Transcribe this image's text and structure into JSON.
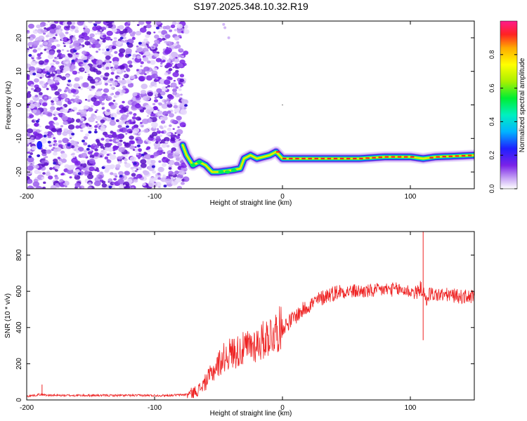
{
  "title": "S197.2025.348.10.32.R19",
  "colors": {
    "snr_line": "#ee2222",
    "axis": "#000000",
    "noise_purple": "#7a22e8"
  },
  "chart_data": [
    {
      "type": "heatmap",
      "name": "spectrogram",
      "xlabel": "Height of straight line (km)",
      "ylabel": "Frequency (Hz)",
      "xlim": [
        -200,
        150
      ],
      "ylim": [
        -25,
        25
      ],
      "xticks": [
        -200,
        -100,
        0,
        100
      ],
      "yticks": [
        -20,
        -10,
        0,
        10,
        20
      ],
      "noise_region_x": [
        -200,
        -75
      ],
      "trace": [
        {
          "x": -78,
          "y": -12
        },
        {
          "x": -75,
          "y": -15
        },
        {
          "x": -70,
          "y": -18
        },
        {
          "x": -65,
          "y": -17
        },
        {
          "x": -60,
          "y": -18
        },
        {
          "x": -55,
          "y": -20
        },
        {
          "x": -50,
          "y": -20
        },
        {
          "x": -40,
          "y": -19.5
        },
        {
          "x": -33,
          "y": -19
        },
        {
          "x": -30,
          "y": -16
        },
        {
          "x": -25,
          "y": -15
        },
        {
          "x": -20,
          "y": -16
        },
        {
          "x": -10,
          "y": -15
        },
        {
          "x": -5,
          "y": -14
        },
        {
          "x": 0,
          "y": -16
        },
        {
          "x": 20,
          "y": -16
        },
        {
          "x": 40,
          "y": -16
        },
        {
          "x": 60,
          "y": -16
        },
        {
          "x": 80,
          "y": -15.5
        },
        {
          "x": 100,
          "y": -15.5
        },
        {
          "x": 110,
          "y": -16
        },
        {
          "x": 120,
          "y": -15.5
        },
        {
          "x": 150,
          "y": -15
        }
      ],
      "colorbar": {
        "label": "Normalized spectral amplitude",
        "range": [
          0,
          1
        ],
        "ticks": [
          "0.0",
          "0.2",
          "0.4",
          "0.6",
          "0.8"
        ],
        "tick_values": [
          0.0,
          0.2,
          0.4,
          0.6,
          0.8
        ]
      }
    },
    {
      "type": "line",
      "name": "snr",
      "xlabel": "Height of straight line (km)",
      "ylabel": "SNR (10 * v/v)",
      "xlim": [
        -200,
        150
      ],
      "ylim": [
        0,
        930
      ],
      "xticks": [
        -200,
        -100,
        0,
        100
      ],
      "yticks": [
        0,
        200,
        400,
        600,
        800
      ],
      "series": [
        {
          "name": "SNR",
          "x": [
            -200,
            -190,
            -180,
            -160,
            -140,
            -120,
            -100,
            -90,
            -80,
            -75,
            -70,
            -65,
            -60,
            -55,
            -50,
            -45,
            -40,
            -35,
            -30,
            -25,
            -20,
            -15,
            -10,
            -5,
            0,
            5,
            10,
            15,
            20,
            25,
            30,
            35,
            40,
            45,
            50,
            60,
            70,
            80,
            90,
            100,
            105,
            108,
            110,
            112,
            115,
            120,
            130,
            140,
            150
          ],
          "y": [
            20,
            30,
            25,
            25,
            25,
            25,
            25,
            25,
            28,
            30,
            40,
            60,
            100,
            150,
            200,
            240,
            260,
            270,
            280,
            300,
            310,
            330,
            360,
            380,
            400,
            430,
            460,
            490,
            520,
            540,
            560,
            580,
            590,
            600,
            600,
            600,
            600,
            610,
            610,
            600,
            590,
            620,
            600,
            540,
            590,
            580,
            580,
            570,
            570
          ],
          "color": "#ee2222"
        }
      ],
      "annotations": [
        {
          "x": -188,
          "y": 85,
          "note": "small spike"
        },
        {
          "x": 110,
          "y": 930,
          "note": "max spike"
        },
        {
          "x": 110,
          "y": 330,
          "note": "min dip"
        }
      ]
    }
  ]
}
